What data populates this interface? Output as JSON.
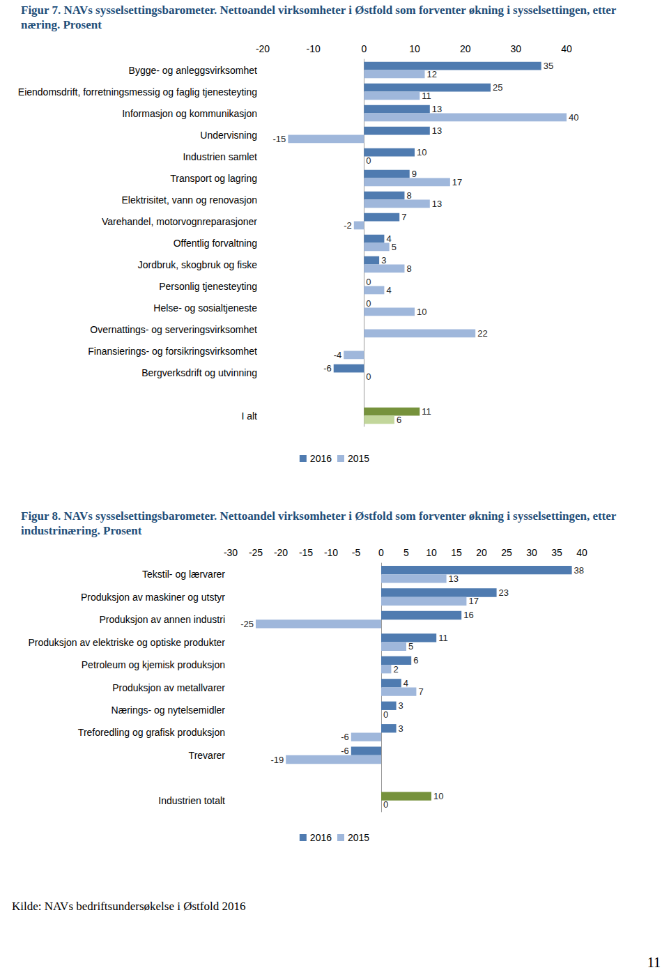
{
  "chart_data": [
    {
      "type": "bar",
      "title": "Figur 7. NAVs sysselsettingsbarometer. Nettoandel virksomheter i Østfold som forventer økning i sysselsettingen, etter næring. Prosent",
      "orientation": "horizontal",
      "categories": [
        "Bygge- og anleggsvirksomhet",
        "Eiendomsdrift, forretningsmessig og faglig tjenesteyting",
        "Informasjon og kommunikasjon",
        "Undervisning",
        "Industrien samlet",
        "Transport og lagring",
        "Elektrisitet, vann og renovasjon",
        "Varehandel, motorvognreparasjoner",
        "Offentlig forvaltning",
        "Jordbruk, skogbruk og fiske",
        "Personlig tjenesteyting",
        "Helse- og sosialtjeneste",
        "Overnattings- og serveringsvirksomhet",
        "Finansierings- og forsikringsvirksomhet",
        "Bergverksdrift og utvinning",
        null,
        "I alt"
      ],
      "series": [
        {
          "name": "2016",
          "color": "#4f7bb0",
          "colors": [
            "#4f7bb0",
            "#4f7bb0",
            "#4f7bb0",
            "#4f7bb0",
            "#4f7bb0",
            "#4f7bb0",
            "#4f7bb0",
            "#4f7bb0",
            "#4f7bb0",
            "#4f7bb0",
            "#4f7bb0",
            "#4f7bb0",
            "#4f7bb0",
            "#4f7bb0",
            "#4f7bb0",
            "#4f7bb0",
            "#76923c"
          ],
          "values": [
            35,
            25,
            13,
            13,
            10,
            9,
            8,
            7,
            4,
            3,
            0,
            0,
            null,
            null,
            -6,
            null,
            11
          ]
        },
        {
          "name": "2015",
          "color": "#9fb7db",
          "colors": [
            "#9fb7db",
            "#9fb7db",
            "#9fb7db",
            "#9fb7db",
            "#9fb7db",
            "#9fb7db",
            "#9fb7db",
            "#9fb7db",
            "#9fb7db",
            "#9fb7db",
            "#9fb7db",
            "#9fb7db",
            "#9fb7db",
            "#9fb7db",
            "#9fb7db",
            "#9fb7db",
            "#c2d69b"
          ],
          "values": [
            12,
            11,
            40,
            -15,
            0,
            17,
            13,
            -2,
            5,
            8,
            4,
            10,
            22,
            -4,
            0,
            null,
            6
          ]
        }
      ],
      "xlim": [
        -20,
        40
      ],
      "xticks": [
        -20,
        -10,
        0,
        10,
        20,
        30,
        40
      ],
      "grid": false,
      "data_labels": true,
      "legend": "bottom"
    },
    {
      "type": "bar",
      "title": "Figur 8. NAVs sysselsettingsbarometer. Nettoandel virksomheter i Østfold som forventer økning i sysselsettingen, etter industrinæring. Prosent",
      "orientation": "horizontal",
      "categories": [
        "Tekstil- og lærvarer",
        "Produksjon av maskiner og utstyr",
        "Produksjon av annen industri",
        "Produksjon av elektriske og optiske produkter",
        "Petroleum og kjemisk produksjon",
        "Produksjon av metallvarer",
        "Nærings- og nytelsemidler",
        "Treforedling og grafisk produksjon",
        "Trevarer",
        null,
        "Industrien totalt"
      ],
      "series": [
        {
          "name": "2016",
          "color": "#4f7bb0",
          "colors": [
            "#4f7bb0",
            "#4f7bb0",
            "#4f7bb0",
            "#4f7bb0",
            "#4f7bb0",
            "#4f7bb0",
            "#4f7bb0",
            "#4f7bb0",
            "#4f7bb0",
            "#4f7bb0",
            "#76923c"
          ],
          "values": [
            38,
            23,
            16,
            11,
            6,
            4,
            3,
            3,
            -6,
            null,
            10
          ]
        },
        {
          "name": "2015",
          "color": "#9fb7db",
          "colors": [
            "#9fb7db",
            "#9fb7db",
            "#9fb7db",
            "#9fb7db",
            "#9fb7db",
            "#9fb7db",
            "#9fb7db",
            "#9fb7db",
            "#9fb7db",
            "#9fb7db",
            "#c2d69b"
          ],
          "values": [
            13,
            17,
            -25,
            5,
            2,
            7,
            0,
            -6,
            -19,
            null,
            0
          ]
        }
      ],
      "xlim": [
        -30,
        40
      ],
      "xticks": [
        -30,
        -25,
        -20,
        -15,
        -10,
        -5,
        0,
        5,
        10,
        15,
        20,
        25,
        30,
        35,
        40
      ],
      "grid": false,
      "data_labels": true,
      "legend": "bottom"
    }
  ],
  "source": "Kilde: NAVs bedriftsundersøkelse i Østfold 2016",
  "page_number": "11"
}
